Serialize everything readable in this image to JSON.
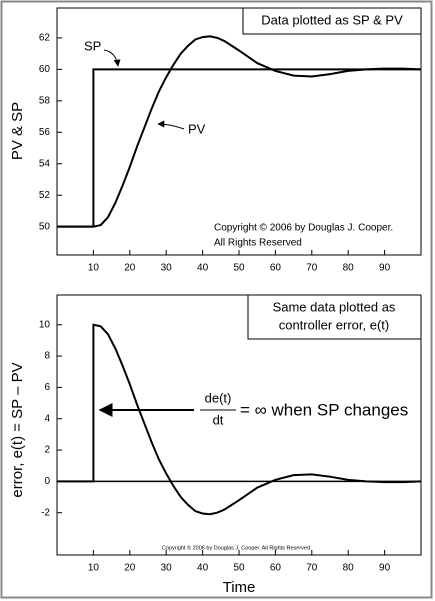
{
  "chart_data": [
    {
      "type": "line",
      "ylabel": "PV & SP",
      "annotations": [
        "Data plotted as SP & PV",
        "Copyright © 2006 by Douglas J. Cooper.",
        "All Rights Reserved"
      ],
      "x": [
        0,
        10,
        10,
        12,
        14,
        16,
        18,
        20,
        22,
        24,
        26,
        28,
        30,
        32,
        34,
        36,
        38,
        40,
        42,
        44,
        46,
        48,
        50,
        55,
        60,
        65,
        70,
        75,
        80,
        85,
        90,
        95,
        100
      ],
      "series": [
        {
          "name": "SP",
          "color": "#000000",
          "values": [
            50,
            50,
            60,
            60,
            60,
            60,
            60,
            60,
            60,
            60,
            60,
            60,
            60,
            60,
            60,
            60,
            60,
            60,
            60,
            60,
            60,
            60,
            60,
            60,
            60,
            60,
            60,
            60,
            60,
            60,
            60,
            60,
            60
          ]
        },
        {
          "name": "PV",
          "color": "#000000",
          "values": [
            50,
            50,
            50,
            50.1,
            50.6,
            51.5,
            52.6,
            53.8,
            55.1,
            56.3,
            57.5,
            58.6,
            59.5,
            60.3,
            61,
            61.5,
            61.9,
            62.05,
            62.1,
            62,
            61.8,
            61.5,
            61.2,
            60.4,
            59.9,
            59.6,
            59.55,
            59.7,
            59.9,
            60,
            60.05,
            60.05,
            60
          ]
        }
      ],
      "xlim": [
        0,
        100
      ],
      "xticks": [
        10,
        20,
        30,
        40,
        50,
        60,
        70,
        80,
        90
      ],
      "ylim": [
        48.2,
        63.9
      ],
      "yticks": [
        50,
        52,
        54,
        56,
        58,
        60,
        62
      ]
    },
    {
      "type": "line",
      "xlabel": "Time",
      "ylabel": "error, e(t) = SP – PV",
      "annotations": [
        "Same data plotted as",
        "controller error, e(t)",
        "de(t)",
        "dt",
        "= ∞ when SP changes",
        "Copyright © 2006 by Douglas J. Cooper. All Rights Reserved"
      ],
      "x": [
        0,
        10,
        10,
        12,
        14,
        16,
        18,
        20,
        22,
        24,
        26,
        28,
        30,
        32,
        34,
        36,
        38,
        40,
        42,
        44,
        46,
        48,
        50,
        55,
        60,
        65,
        70,
        75,
        80,
        85,
        90,
        95,
        100
      ],
      "series": [
        {
          "color": "#000000",
          "values": [
            0,
            0,
            10,
            9.9,
            9.4,
            8.5,
            7.4,
            6.2,
            4.9,
            3.7,
            2.5,
            1.4,
            0.5,
            -0.3,
            -1,
            -1.5,
            -1.9,
            -2.05,
            -2.1,
            -2,
            -1.8,
            -1.5,
            -1.2,
            -0.4,
            0.1,
            0.4,
            0.45,
            0.3,
            0.1,
            0,
            -0.05,
            -0.05,
            0
          ]
        }
      ],
      "zero_line": true,
      "xlim": [
        0,
        100
      ],
      "xticks": [
        10,
        20,
        30,
        40,
        50,
        60,
        70,
        80,
        90
      ],
      "ylim": [
        -4.7,
        11.9
      ],
      "yticks": [
        -2,
        0,
        2,
        4,
        6,
        8,
        10
      ]
    }
  ]
}
